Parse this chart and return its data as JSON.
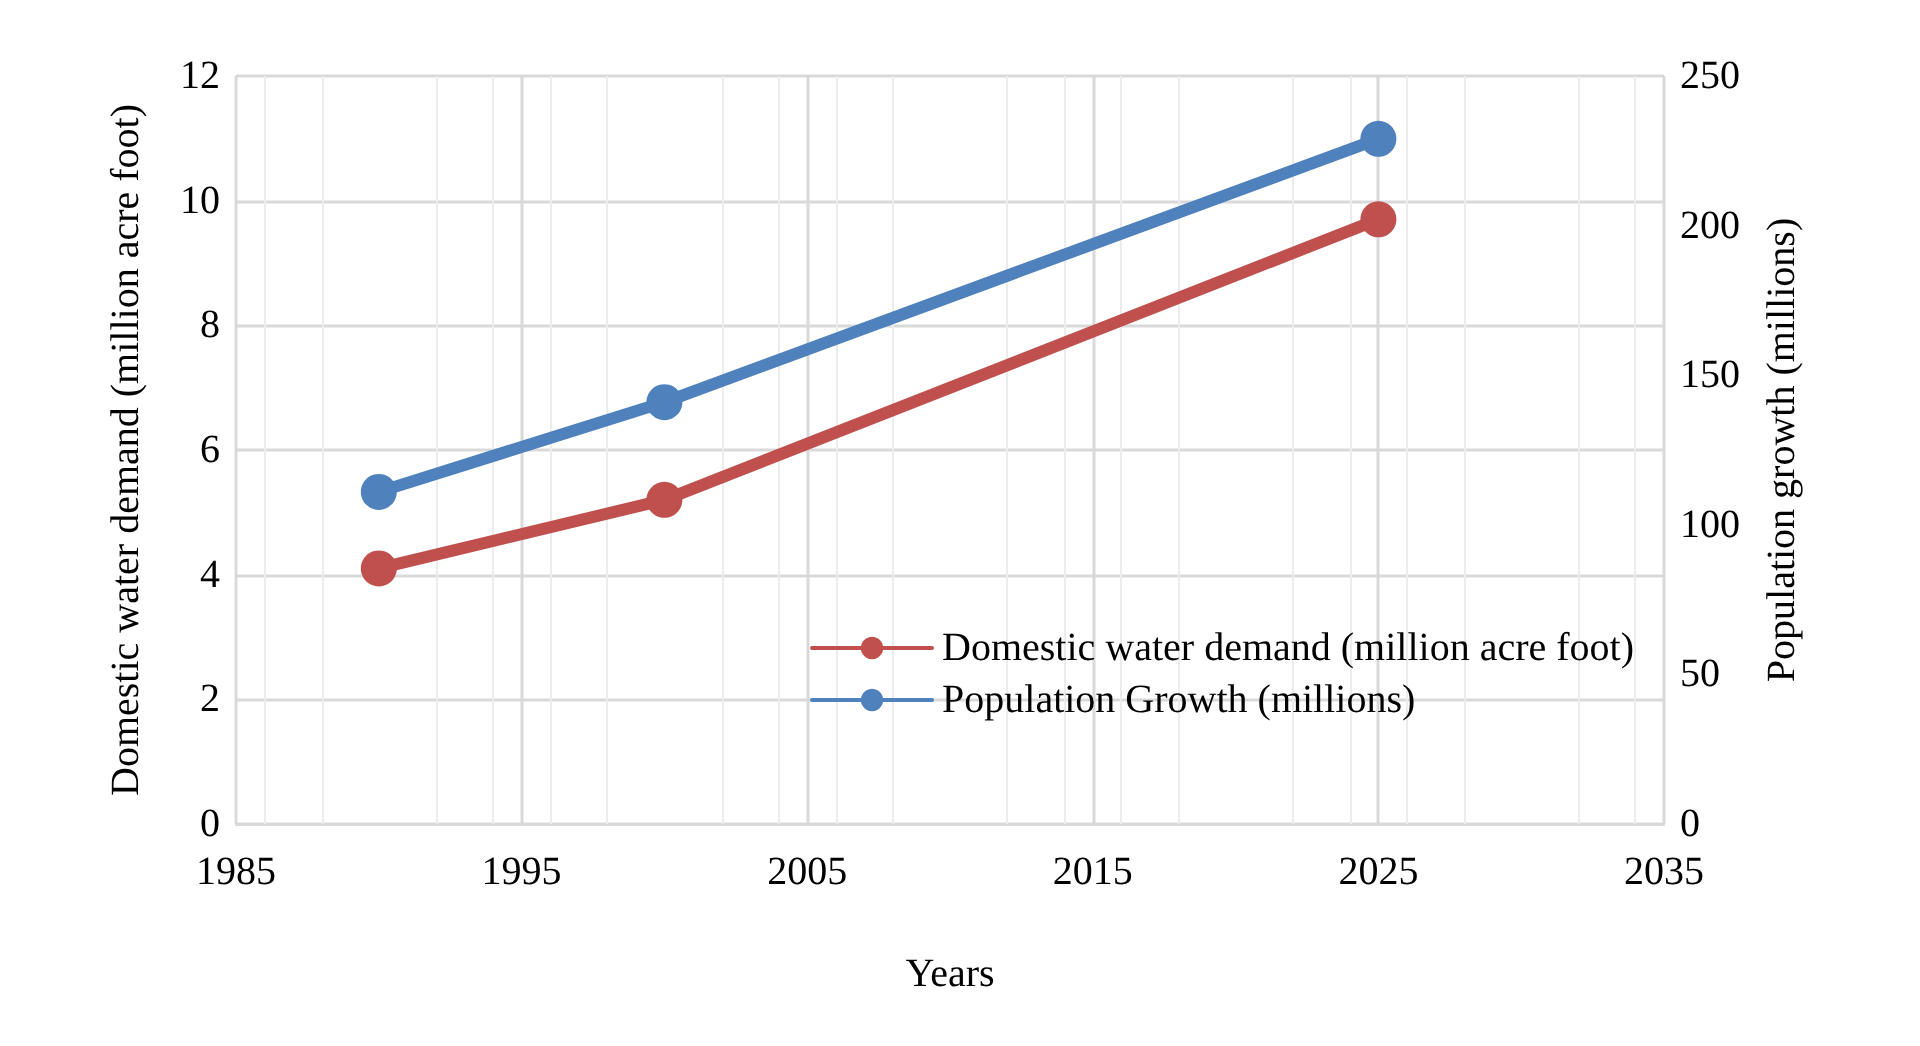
{
  "chart_data": {
    "type": "line",
    "xlabel": "Years",
    "ylabel": "Domestic water demand (million acre foot)",
    "y2label": "Population growth (millions)",
    "x": [
      1990,
      2000,
      2025
    ],
    "series": [
      {
        "name": "Domestic water demand (million acre foot)",
        "color": "#c0504d",
        "values": [
          4.1,
          5.2,
          9.7
        ]
      },
      {
        "name": "Population Growth (millions)",
        "color": "#4f81bd",
        "values": [
          111,
          141,
          229
        ],
        "axis": "y2"
      }
    ],
    "xlim": [
      1985,
      2035
    ],
    "xticks": [
      1985,
      1995,
      2005,
      2015,
      2025,
      2035
    ],
    "ylim": [
      0,
      12
    ],
    "yticks": [
      0,
      2,
      4,
      6,
      8,
      10,
      12
    ],
    "y2lim": [
      0,
      250
    ],
    "y2ticks": [
      0,
      50,
      100,
      150,
      200,
      250
    ],
    "grid": true,
    "legend": "bottom right",
    "marker": "circle",
    "line_style": "solid"
  }
}
